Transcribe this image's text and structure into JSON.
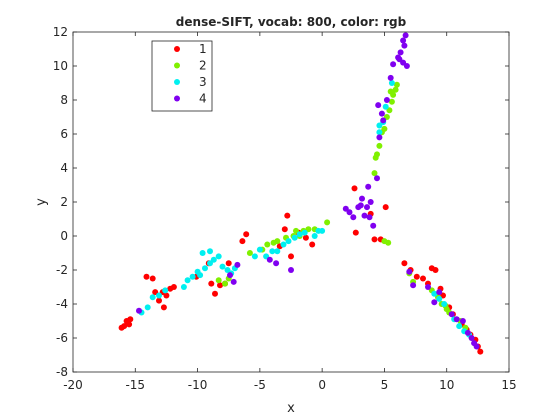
{
  "chart_data": {
    "type": "scatter",
    "title": "dense-SIFT, vocab: 800, color: rgb",
    "xlabel": "x",
    "ylabel": "y",
    "xlim": [
      -20,
      15
    ],
    "ylim": [
      -8,
      12
    ],
    "xticks": [
      -20,
      -15,
      -10,
      -5,
      0,
      5,
      10,
      15
    ],
    "yticks": [
      -8,
      -6,
      -4,
      -2,
      0,
      2,
      4,
      6,
      8,
      10,
      12
    ],
    "grid": false,
    "legend_position": "top-left",
    "series": [
      {
        "name": "1",
        "color": "#ff0000",
        "points": [
          [
            -16.1,
            -5.4
          ],
          [
            -15.9,
            -5.3
          ],
          [
            -15.6,
            -5.1
          ],
          [
            -15.5,
            -5.2
          ],
          [
            -15.4,
            -4.9
          ],
          [
            -15.7,
            -5.0
          ],
          [
            -14.1,
            -2.4
          ],
          [
            -13.6,
            -2.5
          ],
          [
            -13.4,
            -3.3
          ],
          [
            -13.1,
            -3.8
          ],
          [
            -12.8,
            -3.3
          ],
          [
            -12.5,
            -3.5
          ],
          [
            -12.2,
            -3.1
          ],
          [
            -11.9,
            -3.0
          ],
          [
            -12.7,
            -4.2
          ],
          [
            -10.1,
            -2.4
          ],
          [
            -9.1,
            -1.6
          ],
          [
            -8.9,
            -2.8
          ],
          [
            -8.6,
            -3.4
          ],
          [
            -8.2,
            -2.9
          ],
          [
            -7.8,
            -2.8
          ],
          [
            -7.5,
            -1.6
          ],
          [
            -6.4,
            -0.3
          ],
          [
            -6.1,
            0.1
          ],
          [
            -3.4,
            -0.6
          ],
          [
            -3.0,
            0.4
          ],
          [
            -2.8,
            1.2
          ],
          [
            -2.5,
            -1.2
          ],
          [
            -1.9,
            0.2
          ],
          [
            -1.3,
            -0.1
          ],
          [
            -0.8,
            -0.5
          ],
          [
            2.7,
            0.2
          ],
          [
            2.6,
            2.8
          ],
          [
            3.9,
            1.3
          ],
          [
            5.1,
            1.7
          ],
          [
            4.7,
            -0.2
          ],
          [
            4.2,
            -0.2
          ],
          [
            6.6,
            -1.6
          ],
          [
            7.1,
            -2.0
          ],
          [
            7.6,
            -2.4
          ],
          [
            8.1,
            -2.5
          ],
          [
            8.5,
            -2.8
          ],
          [
            8.8,
            -1.9
          ],
          [
            9.1,
            -2.0
          ],
          [
            9.5,
            -3.1
          ],
          [
            9.7,
            -3.5
          ],
          [
            10.2,
            -4.2
          ],
          [
            10.5,
            -4.6
          ],
          [
            11.2,
            -5.2
          ],
          [
            11.6,
            -5.5
          ],
          [
            11.9,
            -5.8
          ],
          [
            12.3,
            -6.1
          ],
          [
            12.5,
            -6.5
          ],
          [
            12.7,
            -6.8
          ]
        ]
      },
      {
        "name": "2",
        "color": "#80f000",
        "points": [
          [
            -8.3,
            -2.6
          ],
          [
            -7.8,
            -2.8
          ],
          [
            -7.5,
            -2.5
          ],
          [
            -5.8,
            -1.0
          ],
          [
            -4.8,
            -0.8
          ],
          [
            -4.4,
            -0.5
          ],
          [
            -3.9,
            -0.4
          ],
          [
            -3.6,
            -0.3
          ],
          [
            -2.9,
            -0.1
          ],
          [
            -2.3,
            0.0
          ],
          [
            -2.1,
            0.3
          ],
          [
            -1.8,
            0.0
          ],
          [
            -1.5,
            0.3
          ],
          [
            -1.1,
            0.4
          ],
          [
            -0.6,
            0.4
          ],
          [
            0.4,
            0.8
          ],
          [
            4.2,
            3.7
          ],
          [
            4.3,
            4.6
          ],
          [
            4.4,
            4.8
          ],
          [
            4.6,
            5.3
          ],
          [
            4.8,
            6.1
          ],
          [
            5.0,
            6.3
          ],
          [
            5.2,
            7.0
          ],
          [
            5.4,
            7.4
          ],
          [
            5.6,
            7.9
          ],
          [
            5.7,
            8.3
          ],
          [
            5.9,
            8.6
          ],
          [
            6.0,
            8.9
          ],
          [
            5.5,
            8.5
          ],
          [
            5.3,
            -0.4
          ],
          [
            5.0,
            -0.3
          ],
          [
            7.0,
            -2.2
          ],
          [
            7.3,
            -2.7
          ],
          [
            8.8,
            -3.2
          ],
          [
            9.3,
            -3.6
          ],
          [
            9.6,
            -4.0
          ],
          [
            9.9,
            -4.1
          ],
          [
            10.0,
            -4.3
          ],
          [
            10.2,
            -4.5
          ],
          [
            11.1,
            -5.0
          ],
          [
            11.5,
            -5.4
          ]
        ]
      },
      {
        "name": "3",
        "color": "#00f0f0",
        "points": [
          [
            -14.5,
            -4.5
          ],
          [
            -14.0,
            -4.2
          ],
          [
            -13.6,
            -3.6
          ],
          [
            -13.1,
            -3.5
          ],
          [
            -12.6,
            -3.2
          ],
          [
            -11.1,
            -3.0
          ],
          [
            -10.8,
            -2.6
          ],
          [
            -10.4,
            -2.4
          ],
          [
            -10.0,
            -2.1
          ],
          [
            -9.8,
            -2.3
          ],
          [
            -9.4,
            -1.9
          ],
          [
            -9.0,
            -1.6
          ],
          [
            -8.7,
            -1.4
          ],
          [
            -8.3,
            -1.2
          ],
          [
            -8.0,
            -1.8
          ],
          [
            -7.6,
            -2.0
          ],
          [
            -7.3,
            -2.2
          ],
          [
            -7.0,
            -1.9
          ],
          [
            -9.6,
            -1.0
          ],
          [
            -9.0,
            -0.9
          ],
          [
            -5.4,
            -1.2
          ],
          [
            -5.0,
            -0.8
          ],
          [
            -4.5,
            -1.2
          ],
          [
            -4.0,
            -0.9
          ],
          [
            -3.6,
            -0.9
          ],
          [
            -3.1,
            -0.5
          ],
          [
            -2.7,
            -0.3
          ],
          [
            -2.2,
            -0.1
          ],
          [
            -1.8,
            0.1
          ],
          [
            -1.4,
            0.2
          ],
          [
            -0.6,
            0.0
          ],
          [
            -0.3,
            0.3
          ],
          [
            0.0,
            0.3
          ],
          [
            4.6,
            6.5
          ],
          [
            4.9,
            6.7
          ],
          [
            4.6,
            6.1
          ],
          [
            5.1,
            7.6
          ],
          [
            5.6,
            9.0
          ],
          [
            9.0,
            -3.4
          ],
          [
            9.4,
            -3.7
          ],
          [
            9.8,
            -4.0
          ],
          [
            10.6,
            -4.9
          ],
          [
            11.0,
            -5.3
          ],
          [
            11.4,
            -5.6
          ],
          [
            11.8,
            -5.8
          ]
        ]
      },
      {
        "name": "4",
        "color": "#8000f0",
        "points": [
          [
            -14.7,
            -4.4
          ],
          [
            -7.4,
            -2.3
          ],
          [
            -7.1,
            -2.7
          ],
          [
            -6.8,
            -1.7
          ],
          [
            -4.2,
            -1.4
          ],
          [
            -3.7,
            -1.6
          ],
          [
            -2.5,
            -2.0
          ],
          [
            1.9,
            1.6
          ],
          [
            2.2,
            1.4
          ],
          [
            2.5,
            1.1
          ],
          [
            2.9,
            1.7
          ],
          [
            3.1,
            1.8
          ],
          [
            3.4,
            1.2
          ],
          [
            3.6,
            1.7
          ],
          [
            3.8,
            1.1
          ],
          [
            3.9,
            2.0
          ],
          [
            4.1,
            0.6
          ],
          [
            3.2,
            2.2
          ],
          [
            3.7,
            2.9
          ],
          [
            4.4,
            3.4
          ],
          [
            4.6,
            5.8
          ],
          [
            4.9,
            6.8
          ],
          [
            4.8,
            7.2
          ],
          [
            4.5,
            7.7
          ],
          [
            5.2,
            8.0
          ],
          [
            5.5,
            9.3
          ],
          [
            5.7,
            10.1
          ],
          [
            6.2,
            10.4
          ],
          [
            6.5,
            10.2
          ],
          [
            6.1,
            10.5
          ],
          [
            6.3,
            10.8
          ],
          [
            6.6,
            11.2
          ],
          [
            6.5,
            11.5
          ],
          [
            6.7,
            11.8
          ],
          [
            6.8,
            10.0
          ],
          [
            7.0,
            -2.1
          ],
          [
            7.3,
            -2.9
          ],
          [
            8.5,
            -3.0
          ],
          [
            9.0,
            -3.9
          ],
          [
            9.4,
            -3.3
          ],
          [
            10.4,
            -4.6
          ],
          [
            10.8,
            -4.9
          ],
          [
            11.3,
            -5.0
          ],
          [
            11.7,
            -5.7
          ],
          [
            12.0,
            -6.0
          ],
          [
            12.2,
            -6.3
          ],
          [
            12.4,
            -6.5
          ]
        ]
      }
    ]
  }
}
